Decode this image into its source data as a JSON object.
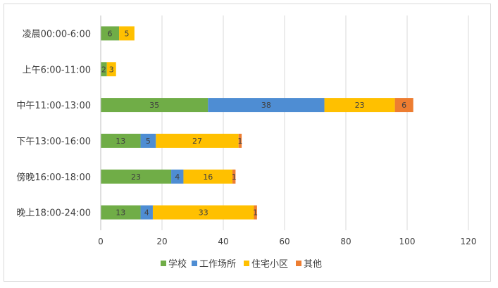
{
  "chart_data": {
    "type": "bar",
    "orientation": "horizontal",
    "stacked": true,
    "categories": [
      "凌晨00:00-6:00",
      "上午6:00-11:00",
      "中午11:00-13:00",
      "下午13:00-16:00",
      "傍晚16:00-18:00",
      "晚上18:00-24:00"
    ],
    "series": [
      {
        "name": "学校",
        "color": "#70ad47",
        "values": [
          6,
          2,
          35,
          13,
          23,
          13
        ]
      },
      {
        "name": "工作场所",
        "color": "#4e8dd3",
        "values": [
          0,
          0,
          38,
          5,
          4,
          4
        ]
      },
      {
        "name": "住宅小区",
        "color": "#ffc000",
        "values": [
          5,
          3,
          23,
          27,
          16,
          33
        ]
      },
      {
        "name": "其他",
        "color": "#ed7d31",
        "values": [
          0,
          0,
          6,
          1,
          1,
          1
        ]
      }
    ],
    "xlim": [
      0,
      120
    ],
    "xticks": [
      0,
      20,
      40,
      60,
      80,
      100,
      120
    ],
    "grid": true,
    "legend_position": "bottom",
    "title": "",
    "xlabel": "",
    "ylabel": ""
  }
}
